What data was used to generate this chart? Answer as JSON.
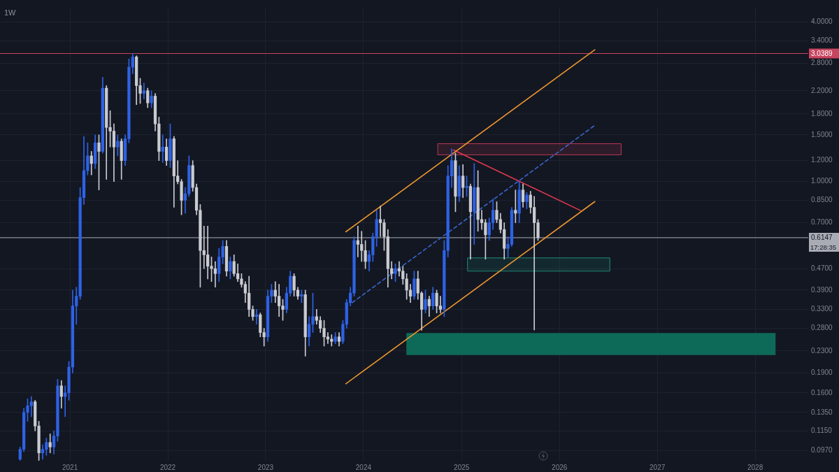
{
  "chart_data": {
    "type": "candlestick",
    "title": "1W",
    "log": true,
    "grid": true,
    "xlim": [
      "2020-04-15",
      "2028-07-17"
    ],
    "xticks": [
      "2021",
      "2022",
      "2023",
      "2024",
      "2025",
      "2026",
      "2027",
      "2028"
    ],
    "ylim": [
      0.0887,
      4.55
    ],
    "yticks": [
      {
        "value": 0.097,
        "label": "0.0970"
      },
      {
        "value": 0.115,
        "label": "0.1150"
      },
      {
        "value": 0.135,
        "label": "0.1350"
      },
      {
        "value": 0.16,
        "label": "0.1600"
      },
      {
        "value": 0.19,
        "label": "0.1900"
      },
      {
        "value": 0.23,
        "label": "0.2300"
      },
      {
        "value": 0.28,
        "label": "0.2800"
      },
      {
        "value": 0.33,
        "label": "0.3300"
      },
      {
        "value": 0.39,
        "label": "0.3900"
      },
      {
        "value": 0.47,
        "label": "0.4700"
      },
      {
        "value": 0.7,
        "label": "0.7000"
      },
      {
        "value": 0.85,
        "label": "0.8500"
      },
      {
        "value": 1,
        "label": "1.0000"
      },
      {
        "value": 1.2,
        "label": "1.2000"
      },
      {
        "value": 1.5,
        "label": "1.5000"
      },
      {
        "value": 1.8,
        "label": "1.8000"
      },
      {
        "value": 2.2,
        "label": "2.2000"
      },
      {
        "value": 2.8,
        "label": "2.8000"
      },
      {
        "value": 3.4,
        "label": "3.4000"
      },
      {
        "value": 4,
        "label": "4.0000"
      }
    ],
    "ref_lines": [
      {
        "axis": "y",
        "value": 3.0389,
        "label": "3.0389",
        "color": "#c8455f"
      },
      {
        "axis": "y",
        "value": 0.6147,
        "label": "0.6147",
        "color": "#a9acb5"
      }
    ],
    "annotations": [
      "17:28:35"
    ],
    "series": [
      {
        "x": [
          "2020-06-29",
          "2020-07-13",
          "2020-07-27",
          "2020-08-10",
          "2020-08-24",
          "2020-09-07",
          "2020-09-21",
          "2020-10-05",
          "2020-10-19",
          "2020-11-02",
          "2020-11-16",
          "2020-11-30",
          "2020-12-14",
          "2020-12-28",
          "2021-01-11",
          "2021-01-25",
          "2021-02-08",
          "2021-02-22",
          "2021-03-08",
          "2021-03-22",
          "2021-04-05",
          "2021-04-19",
          "2021-05-03",
          "2021-05-17",
          "2021-05-31",
          "2021-06-14",
          "2021-06-28",
          "2021-07-12",
          "2021-07-26",
          "2021-08-09",
          "2021-08-23",
          "2021-09-06",
          "2021-09-20",
          "2021-10-04",
          "2021-10-18",
          "2021-11-01",
          "2021-11-15",
          "2021-11-29",
          "2021-12-13",
          "2021-12-27",
          "2022-01-10",
          "2022-01-24",
          "2022-02-07",
          "2022-02-21",
          "2022-03-07",
          "2022-03-21",
          "2022-04-04",
          "2022-04-18",
          "2022-05-02",
          "2022-05-16",
          "2022-05-30",
          "2022-06-13",
          "2022-06-27",
          "2022-07-11",
          "2022-07-25",
          "2022-08-08",
          "2022-08-22",
          "2022-09-05",
          "2022-09-19",
          "2022-10-03",
          "2022-10-17",
          "2022-10-31",
          "2022-11-14",
          "2022-11-28",
          "2022-12-12",
          "2022-12-26",
          "2023-01-09",
          "2023-01-23",
          "2023-02-06",
          "2023-02-20",
          "2023-03-06",
          "2023-03-20",
          "2023-04-03",
          "2023-04-17",
          "2023-05-01",
          "2023-05-15",
          "2023-05-29",
          "2023-06-12",
          "2023-06-26",
          "2023-07-10",
          "2023-07-24",
          "2023-08-07",
          "2023-08-21",
          "2023-09-04",
          "2023-09-18",
          "2023-10-02",
          "2023-10-16",
          "2023-10-30",
          "2023-11-13",
          "2023-11-27",
          "2023-12-11",
          "2023-12-25",
          "2024-01-08",
          "2024-01-22",
          "2024-02-05",
          "2024-02-19",
          "2024-03-04",
          "2024-03-18",
          "2024-04-01",
          "2024-04-15",
          "2024-04-29",
          "2024-05-13",
          "2024-05-27",
          "2024-06-10",
          "2024-06-24",
          "2024-07-08",
          "2024-07-22",
          "2024-08-05",
          "2024-08-19",
          "2024-09-02",
          "2024-09-16",
          "2024-09-30",
          "2024-10-14",
          "2024-10-28",
          "2024-11-11",
          "2024-11-25",
          "2024-12-09",
          "2024-12-23",
          "2025-01-06",
          "2025-01-20",
          "2025-02-03",
          "2025-02-17",
          "2025-03-03",
          "2025-03-17",
          "2025-03-31",
          "2025-04-14",
          "2025-04-28",
          "2025-05-12",
          "2025-05-26",
          "2025-06-09",
          "2025-06-23",
          "2025-07-07",
          "2025-07-21",
          "2025-08-04",
          "2025-08-18",
          "2025-09-01",
          "2025-09-15",
          "2025-09-29",
          "2025-10-13"
        ],
        "ohlc": [
          [
            0.09,
            0.1,
            0.089,
            0.098
          ],
          [
            0.098,
            0.14,
            0.096,
            0.135
          ],
          [
            0.135,
            0.152,
            0.125,
            0.143
          ],
          [
            0.143,
            0.155,
            0.13,
            0.148
          ],
          [
            0.148,
            0.15,
            0.115,
            0.12
          ],
          [
            0.12,
            0.125,
            0.089,
            0.095
          ],
          [
            0.095,
            0.102,
            0.09,
            0.098
          ],
          [
            0.098,
            0.108,
            0.093,
            0.104
          ],
          [
            0.104,
            0.112,
            0.095,
            0.1
          ],
          [
            0.1,
            0.115,
            0.094,
            0.11
          ],
          [
            0.11,
            0.18,
            0.105,
            0.17
          ],
          [
            0.17,
            0.178,
            0.14,
            0.155
          ],
          [
            0.155,
            0.17,
            0.13,
            0.16
          ],
          [
            0.16,
            0.21,
            0.15,
            0.2
          ],
          [
            0.2,
            0.39,
            0.19,
            0.34
          ],
          [
            0.34,
            0.4,
            0.29,
            0.37
          ],
          [
            0.37,
            0.95,
            0.36,
            0.87
          ],
          [
            0.87,
            1.48,
            0.82,
            1.1
          ],
          [
            1.1,
            1.4,
            1.06,
            1.25
          ],
          [
            1.25,
            1.3,
            1.06,
            1.17
          ],
          [
            1.17,
            1.5,
            1.12,
            1.4
          ],
          [
            1.4,
            1.5,
            0.93,
            1.3
          ],
          [
            1.3,
            2.47,
            1.28,
            2.25
          ],
          [
            2.25,
            2.3,
            1.02,
            1.6
          ],
          [
            1.6,
            1.85,
            1.35,
            1.55
          ],
          [
            1.55,
            1.65,
            1.0,
            1.35
          ],
          [
            1.35,
            1.5,
            1.25,
            1.42
          ],
          [
            1.42,
            1.45,
            1.02,
            1.2
          ],
          [
            1.2,
            1.5,
            1.15,
            1.45
          ],
          [
            1.45,
            2.9,
            1.4,
            2.7
          ],
          [
            2.7,
            3.04,
            2.55,
            2.95
          ],
          [
            2.95,
            2.98,
            1.95,
            2.3
          ],
          [
            2.3,
            2.45,
            1.97,
            2.15
          ],
          [
            2.15,
            2.35,
            2.05,
            2.2
          ],
          [
            2.2,
            2.25,
            1.9,
            1.98
          ],
          [
            1.98,
            2.2,
            1.9,
            2.1
          ],
          [
            2.1,
            2.15,
            1.55,
            1.65
          ],
          [
            1.65,
            1.75,
            1.2,
            1.3
          ],
          [
            1.3,
            1.5,
            1.18,
            1.35
          ],
          [
            1.35,
            1.45,
            1.15,
            1.2
          ],
          [
            1.2,
            1.65,
            1.13,
            1.45
          ],
          [
            1.45,
            1.48,
            0.8,
            1.05
          ],
          [
            1.05,
            1.2,
            0.98,
            1.0
          ],
          [
            1.0,
            1.02,
            0.75,
            0.85
          ],
          [
            0.85,
            0.95,
            0.76,
            0.9
          ],
          [
            0.9,
            1.25,
            0.88,
            1.15
          ],
          [
            1.15,
            1.2,
            0.92,
            0.95
          ],
          [
            0.95,
            0.98,
            0.75,
            0.78
          ],
          [
            0.78,
            0.82,
            0.4,
            0.55
          ],
          [
            0.55,
            0.68,
            0.47,
            0.53
          ],
          [
            0.53,
            0.68,
            0.43,
            0.48
          ],
          [
            0.48,
            0.52,
            0.42,
            0.47
          ],
          [
            0.47,
            0.5,
            0.4,
            0.45
          ],
          [
            0.45,
            0.56,
            0.42,
            0.52
          ],
          [
            0.52,
            0.6,
            0.49,
            0.57
          ],
          [
            0.57,
            0.6,
            0.44,
            0.46
          ],
          [
            0.46,
            0.52,
            0.43,
            0.5
          ],
          [
            0.5,
            0.53,
            0.44,
            0.45
          ],
          [
            0.45,
            0.49,
            0.42,
            0.43
          ],
          [
            0.43,
            0.45,
            0.4,
            0.41
          ],
          [
            0.41,
            0.42,
            0.35,
            0.38
          ],
          [
            0.38,
            0.44,
            0.31,
            0.33
          ],
          [
            0.33,
            0.34,
            0.3,
            0.31
          ],
          [
            0.31,
            0.33,
            0.29,
            0.315
          ],
          [
            0.315,
            0.32,
            0.26,
            0.27
          ],
          [
            0.27,
            0.28,
            0.24,
            0.26
          ],
          [
            0.26,
            0.39,
            0.25,
            0.37
          ],
          [
            0.37,
            0.41,
            0.35,
            0.39
          ],
          [
            0.39,
            0.42,
            0.35,
            0.37
          ],
          [
            0.37,
            0.41,
            0.31,
            0.34
          ],
          [
            0.34,
            0.36,
            0.3,
            0.33
          ],
          [
            0.33,
            0.4,
            0.32,
            0.38
          ],
          [
            0.38,
            0.46,
            0.37,
            0.44
          ],
          [
            0.44,
            0.45,
            0.37,
            0.39
          ],
          [
            0.39,
            0.4,
            0.36,
            0.37
          ],
          [
            0.37,
            0.39,
            0.35,
            0.375
          ],
          [
            0.375,
            0.39,
            0.22,
            0.26
          ],
          [
            0.26,
            0.31,
            0.24,
            0.29
          ],
          [
            0.29,
            0.38,
            0.27,
            0.31
          ],
          [
            0.31,
            0.33,
            0.29,
            0.3
          ],
          [
            0.3,
            0.31,
            0.27,
            0.28
          ],
          [
            0.28,
            0.3,
            0.24,
            0.26
          ],
          [
            0.26,
            0.27,
            0.245,
            0.255
          ],
          [
            0.255,
            0.265,
            0.24,
            0.25
          ],
          [
            0.25,
            0.27,
            0.245,
            0.26
          ],
          [
            0.26,
            0.27,
            0.24,
            0.25
          ],
          [
            0.25,
            0.3,
            0.245,
            0.29
          ],
          [
            0.29,
            0.36,
            0.28,
            0.35
          ],
          [
            0.35,
            0.4,
            0.34,
            0.38
          ],
          [
            0.38,
            0.62,
            0.37,
            0.6
          ],
          [
            0.6,
            0.68,
            0.52,
            0.58
          ],
          [
            0.58,
            0.65,
            0.5,
            0.55
          ],
          [
            0.55,
            0.6,
            0.47,
            0.5
          ],
          [
            0.5,
            0.55,
            0.46,
            0.53
          ],
          [
            0.53,
            0.64,
            0.5,
            0.62
          ],
          [
            0.62,
            0.78,
            0.57,
            0.72
          ],
          [
            0.72,
            0.81,
            0.62,
            0.7
          ],
          [
            0.7,
            0.72,
            0.55,
            0.62
          ],
          [
            0.62,
            0.66,
            0.4,
            0.47
          ],
          [
            0.47,
            0.5,
            0.43,
            0.45
          ],
          [
            0.45,
            0.49,
            0.42,
            0.47
          ],
          [
            0.47,
            0.5,
            0.44,
            0.46
          ],
          [
            0.46,
            0.48,
            0.41,
            0.43
          ],
          [
            0.43,
            0.45,
            0.36,
            0.39
          ],
          [
            0.39,
            0.41,
            0.35,
            0.37
          ],
          [
            0.37,
            0.46,
            0.36,
            0.43
          ],
          [
            0.43,
            0.46,
            0.36,
            0.38
          ],
          [
            0.38,
            0.385,
            0.275,
            0.33
          ],
          [
            0.33,
            0.39,
            0.32,
            0.36
          ],
          [
            0.36,
            0.37,
            0.31,
            0.34
          ],
          [
            0.34,
            0.4,
            0.33,
            0.38
          ],
          [
            0.38,
            0.39,
            0.32,
            0.34
          ],
          [
            0.34,
            0.37,
            0.32,
            0.33
          ],
          [
            0.33,
            0.6,
            0.31,
            0.55
          ],
          [
            0.55,
            1.15,
            0.52,
            1.05
          ],
          [
            1.05,
            1.33,
            0.95,
            1.2
          ],
          [
            1.2,
            1.28,
            0.77,
            0.88
          ],
          [
            0.88,
            1.15,
            0.84,
            1.05
          ],
          [
            1.05,
            1.16,
            0.87,
            0.95
          ],
          [
            0.95,
            1.05,
            0.88,
            0.96
          ],
          [
            0.96,
            0.98,
            0.51,
            0.77
          ],
          [
            0.77,
            1.17,
            0.58,
            0.95
          ],
          [
            0.95,
            1.1,
            0.65,
            0.72
          ],
          [
            0.72,
            0.78,
            0.66,
            0.7
          ],
          [
            0.7,
            0.72,
            0.51,
            0.63
          ],
          [
            0.63,
            0.73,
            0.6,
            0.7
          ],
          [
            0.7,
            0.86,
            0.66,
            0.78
          ],
          [
            0.78,
            0.84,
            0.7,
            0.72
          ],
          [
            0.72,
            0.76,
            0.64,
            0.66
          ],
          [
            0.66,
            0.7,
            0.51,
            0.56
          ],
          [
            0.56,
            0.62,
            0.52,
            0.58
          ],
          [
            0.58,
            0.8,
            0.57,
            0.78
          ],
          [
            0.78,
            0.93,
            0.7,
            0.76
          ],
          [
            0.76,
            1.0,
            0.7,
            0.93
          ],
          [
            0.93,
            0.98,
            0.8,
            0.84
          ],
          [
            0.84,
            0.91,
            0.79,
            0.89
          ],
          [
            0.89,
            0.92,
            0.76,
            0.8
          ],
          [
            0.8,
            0.88,
            0.276,
            0.7
          ],
          [
            0.7,
            0.72,
            0.6,
            0.6147
          ]
        ],
        "colors": [
          "#2e62e6",
          "#2e62e6",
          "#2e62e6",
          "#2e62e6",
          "#c9cbd1",
          "#c9cbd1",
          "#2e62e6",
          "#2e62e6",
          "#c9cbd1",
          "#2e62e6",
          "#2e62e6",
          "#c9cbd1",
          "#2e62e6",
          "#2e62e6",
          "#2e62e6",
          "#2e62e6",
          "#2e62e6",
          "#2e62e6",
          "#2e62e6",
          "#c9cbd1",
          "#2e62e6",
          "#c9cbd1",
          "#2e62e6",
          "#c9cbd1",
          "#c9cbd1",
          "#c9cbd1",
          "#2e62e6",
          "#c9cbd1",
          "#2e62e6",
          "#2e62e6",
          "#2e62e6",
          "#c9cbd1",
          "#c9cbd1",
          "#2e62e6",
          "#c9cbd1",
          "#2e62e6",
          "#c9cbd1",
          "#c9cbd1",
          "#2e62e6",
          "#c9cbd1",
          "#2e62e6",
          "#c9cbd1",
          "#c9cbd1",
          "#c9cbd1",
          "#2e62e6",
          "#2e62e6",
          "#c9cbd1",
          "#c9cbd1",
          "#c9cbd1",
          "#c9cbd1",
          "#c9cbd1",
          "#c9cbd1",
          "#c9cbd1",
          "#2e62e6",
          "#2e62e6",
          "#c9cbd1",
          "#2e62e6",
          "#c9cbd1",
          "#c9cbd1",
          "#c9cbd1",
          "#c9cbd1",
          "#c9cbd1",
          "#c9cbd1",
          "#2e62e6",
          "#c9cbd1",
          "#c9cbd1",
          "#2e62e6",
          "#2e62e6",
          "#c9cbd1",
          "#c9cbd1",
          "#c9cbd1",
          "#2e62e6",
          "#2e62e6",
          "#c9cbd1",
          "#c9cbd1",
          "#2e62e6",
          "#c9cbd1",
          "#2e62e6",
          "#2e62e6",
          "#c9cbd1",
          "#c9cbd1",
          "#c9cbd1",
          "#c9cbd1",
          "#c9cbd1",
          "#2e62e6",
          "#c9cbd1",
          "#2e62e6",
          "#2e62e6",
          "#2e62e6",
          "#2e62e6",
          "#c9cbd1",
          "#c9cbd1",
          "#c9cbd1",
          "#2e62e6",
          "#2e62e6",
          "#2e62e6",
          "#c9cbd1",
          "#c9cbd1",
          "#c9cbd1",
          "#c9cbd1",
          "#2e62e6",
          "#c9cbd1",
          "#c9cbd1",
          "#c9cbd1",
          "#c9cbd1",
          "#2e62e6",
          "#c9cbd1",
          "#c9cbd1",
          "#2e62e6",
          "#c9cbd1",
          "#2e62e6",
          "#c9cbd1",
          "#c9cbd1",
          "#2e62e6",
          "#2e62e6",
          "#2e62e6",
          "#c9cbd1",
          "#2e62e6",
          "#c9cbd1",
          "#2e62e6",
          "#c9cbd1",
          "#2e62e6",
          "#c9cbd1",
          "#c9cbd1",
          "#c9cbd1",
          "#2e62e6",
          "#2e62e6",
          "#c9cbd1",
          "#c9cbd1",
          "#c9cbd1",
          "#2e62e6",
          "#2e62e6",
          "#c9cbd1",
          "#2e62e6",
          "#c9cbd1",
          "#2e62e6",
          "#c9cbd1",
          "#c9cbd1",
          "#c9cbd1"
        ]
      },
      {
        "type": "line",
        "x": [
          "2023-10-27",
          "2026-05-13"
        ],
        "values": [
          0.647,
          3.14
        ],
        "color": "#ec962f"
      },
      {
        "type": "line",
        "x": [
          "2023-10-27",
          "2026-05-13"
        ],
        "values": [
          0.173,
          0.841
        ],
        "color": "#ec962f"
      },
      {
        "type": "line",
        "x": [
          "2023-11-20",
          "2026-05-13"
        ],
        "values": [
          0.35,
          1.63
        ],
        "color": "#3a66cc",
        "line_style": "dashed"
      },
      {
        "type": "line",
        "x": [
          "2024-12-02",
          "2026-03-21"
        ],
        "values": [
          1.316,
          0.778
        ],
        "color": "#e2384f"
      },
      {
        "type": "line",
        "x": [
          "2024-10-04",
          "2026-08-19"
        ],
        "values": [
          null,
          null
        ],
        "lower": [
          1.262,
          1.262
        ],
        "upper": [
          1.39,
          1.39
        ],
        "color": "#b93a52"
      },
      {
        "type": "line",
        "x": [
          "2025-01-23",
          "2026-07-08"
        ],
        "values": [
          null,
          null
        ],
        "lower": [
          0.46,
          0.46
        ],
        "upper": [
          0.516,
          0.516
        ],
        "color": "#1f8a74"
      },
      {
        "type": "area",
        "x": [
          "2024-06-09",
          "2028-03-17"
        ],
        "values": [
          null,
          null
        ],
        "lower": [
          0.222,
          0.222
        ],
        "upper": [
          0.269,
          0.269
        ],
        "color": "#0e6a58"
      }
    ]
  }
}
